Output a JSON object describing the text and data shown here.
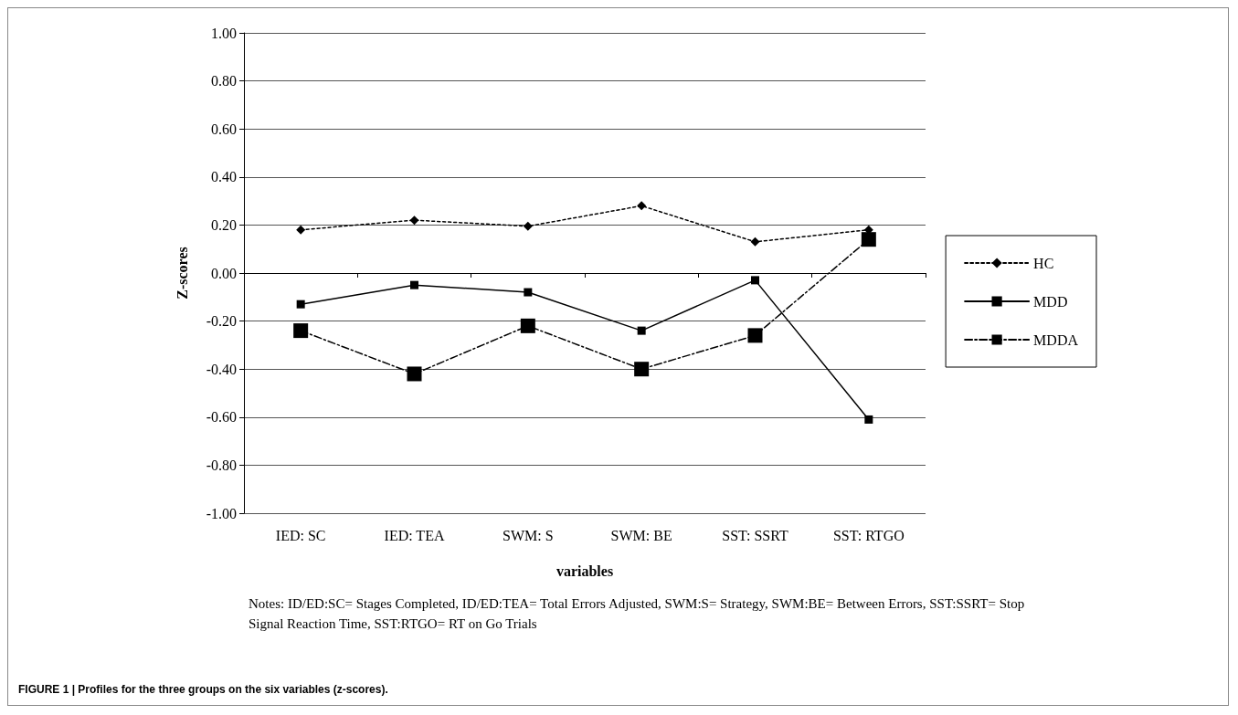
{
  "chart_data": {
    "type": "line",
    "xlabel": "variables",
    "ylabel": "Z-scores",
    "categories": [
      "IED: SC",
      "IED: TEA",
      "SWM: S",
      "SWM: BE",
      "SST: SSRT",
      "SST: RTGO"
    ],
    "series": [
      {
        "name": "HC",
        "color": "#000000",
        "marker": "diamond",
        "line_style": "dotted",
        "values": [
          0.18,
          0.22,
          0.195,
          0.28,
          0.13,
          0.18
        ]
      },
      {
        "name": "MDD",
        "color": "#000000",
        "marker": "square",
        "line_style": "solid",
        "values": [
          -0.13,
          -0.05,
          -0.08,
          -0.24,
          -0.03,
          -0.61
        ]
      },
      {
        "name": "MDDA",
        "color": "#000000",
        "marker": "square",
        "line_style": "dashed",
        "values": [
          -0.24,
          -0.42,
          -0.22,
          -0.4,
          -0.26,
          0.14
        ]
      }
    ],
    "ylim": [
      -1,
      1
    ],
    "yticks": [
      {
        "value": -1,
        "label": "-1.00"
      },
      {
        "value": -0.8,
        "label": "-0.80"
      },
      {
        "value": -0.6,
        "label": "-0.60"
      },
      {
        "value": -0.4,
        "label": "-0.40"
      },
      {
        "value": -0.2,
        "label": "-0.20"
      },
      {
        "value": 0,
        "label": "0.00"
      },
      {
        "value": 0.2,
        "label": "0.20"
      },
      {
        "value": 0.4,
        "label": "0.40"
      },
      {
        "value": 0.6,
        "label": "0.60"
      },
      {
        "value": 0.8,
        "label": "0.80"
      },
      {
        "value": 1,
        "label": "1.00"
      }
    ],
    "grid": "y",
    "legend": "right",
    "annotations": [
      "Notes: ID/ED:SC= Stages Completed, ID/ED:TEA= Total Errors Adjusted, SWM:S= Strategy, SWM:BE= Between Errors, SST:SSRT= Stop Signal Reaction Time, SST:RTGO= RT on Go Trials",
      "FIGURE 1 | Profiles for the three groups on the six variables (z-scores)."
    ]
  }
}
